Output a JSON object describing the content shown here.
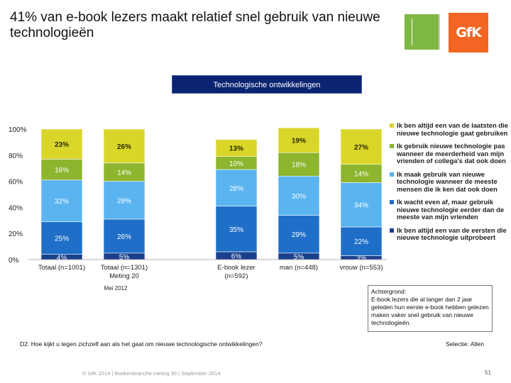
{
  "title": "41% van e-book lezers maakt relatief snel gebruik van nieuwe technologieën",
  "banner": "Technologische ontwikkelingen",
  "note": "Achtergrond:\nE-book lezers die al langer dan 2 jaar geleden hun eerste e-book hebben gelezen maken vaker snel gebruik van nieuwe technologieën.",
  "question": "D2. Hoe kijkt u tegen zichzelf aan als het gaat om nieuwe technologische ontwikkelingen?",
  "selectie": "Selectie: Allen",
  "footer": "© GfK 2014 | Boekenbranche meting 30 | September 2014",
  "page_number": "51",
  "chart_data": {
    "type": "bar",
    "stacked": true,
    "ylim": [
      0,
      100
    ],
    "yticks": [
      "0%",
      "20%",
      "40%",
      "60%",
      "80%",
      "100%"
    ],
    "categories": [
      {
        "label": "Totaal (n=1001)",
        "sub": ""
      },
      {
        "label": "Totaal (n=1301)",
        "sub": "Meting 20"
      },
      {
        "label": "E-book lezer",
        "sub": "(n=592)"
      },
      {
        "label": "man (n=448)",
        "sub": ""
      },
      {
        "label": "vrouw (n=553)",
        "sub": ""
      }
    ],
    "group_label": "Mei 2012",
    "series": [
      {
        "name": "Ik ben altijd een van de eersten die nieuwe technologie uitprobeert",
        "color": "#1a3f8c",
        "label_color": "#ffffff",
        "values": [
          4,
          5,
          6,
          5,
          3
        ]
      },
      {
        "name": "Ik wacht even af, maar gebruik nieuwe technologie eerder dan de meeste van mijn vrienden",
        "color": "#1f6fc8",
        "label_color": "#ffffff",
        "values": [
          25,
          26,
          35,
          29,
          22
        ]
      },
      {
        "name": "Ik maak gebruik van nieuwe technologie wanneer de meeste mensen die ik ken dat ook doen",
        "color": "#5ab4f0",
        "label_color": "#ffffff",
        "values": [
          32,
          29,
          28,
          30,
          34
        ]
      },
      {
        "name": "Ik gebruik nieuwe technologie pas wanneer de meerderheid van mijn vrienden of collega's dat ook doen",
        "color": "#8db52e",
        "label_color": "#ffffff",
        "values": [
          16,
          14,
          10,
          18,
          14
        ]
      },
      {
        "name": "Ik ben altijd een van de laatsten die nieuwe technologie gaat gebruiken",
        "color": "#d9d62a",
        "label_color": "#2a2a00",
        "values": [
          23,
          26,
          13,
          19,
          27
        ]
      }
    ],
    "value_labels": [
      [
        "4%",
        "25%",
        "32%",
        "16%",
        "23%"
      ],
      [
        "5%",
        "26%",
        "29%",
        "14%",
        "26%"
      ],
      [
        "6%",
        "35%",
        "28%",
        "10%",
        "13%"
      ],
      [
        "5%",
        "29%",
        "30%",
        "18%",
        "19%"
      ],
      [
        "3%",
        "22%",
        "34%",
        "14%",
        "27%"
      ]
    ],
    "legend_order": [
      4,
      3,
      2,
      1,
      0
    ],
    "legend_position": "right"
  }
}
